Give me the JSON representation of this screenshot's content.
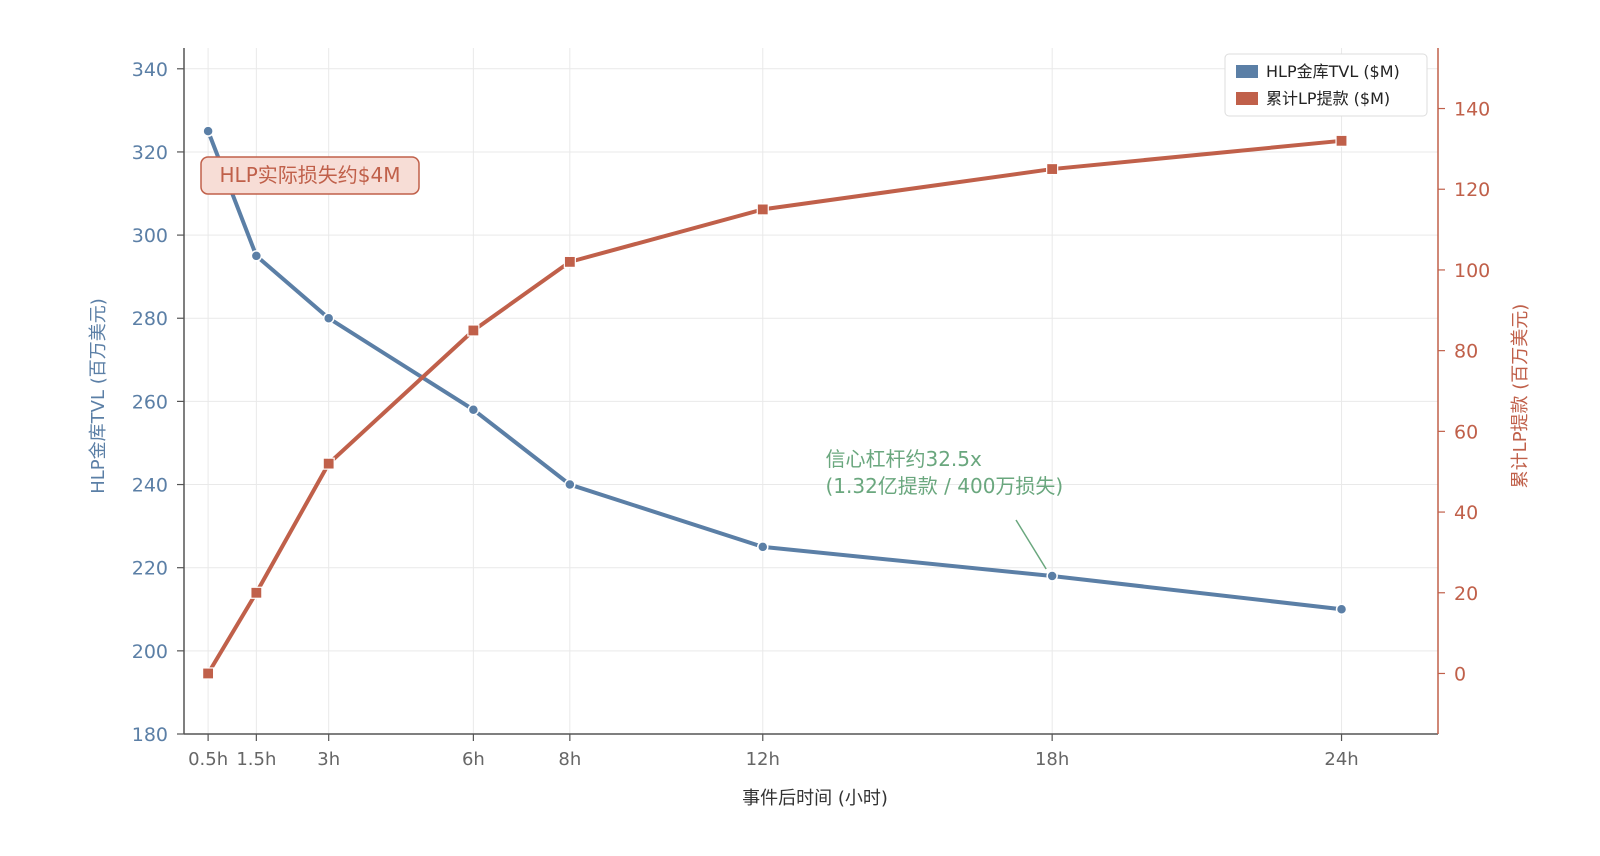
{
  "chart_data": {
    "type": "line",
    "x_labels": [
      "0.5h",
      "1.5h",
      "3h",
      "6h",
      "8h",
      "12h",
      "18h",
      "24h"
    ],
    "x": [
      0.5,
      1.5,
      3,
      6,
      8,
      12,
      18,
      24
    ],
    "xlabel": "事件后时间 (小时)",
    "xlim": [
      0,
      26
    ],
    "y_left": {
      "label": "HLP金库TVL (百万美元)",
      "lim": [
        180,
        345
      ],
      "ticks": [
        180,
        200,
        220,
        240,
        260,
        280,
        300,
        320,
        340
      ],
      "color": "#5b7fa6"
    },
    "y_right": {
      "label": "累计LP提款 (百万美元)",
      "lim": [
        -15,
        155
      ],
      "ticks": [
        0,
        20,
        40,
        60,
        80,
        100,
        120,
        140
      ],
      "color": "#c0604a"
    },
    "series": [
      {
        "name": "HLP金库TVL ($M)",
        "axis": "left",
        "marker": "circle",
        "color": "#5b7fa6",
        "values": [
          325,
          295,
          280,
          258,
          240,
          225,
          218,
          210
        ]
      },
      {
        "name": "累计LP提款 ($M)",
        "axis": "right",
        "marker": "square",
        "color": "#c0604a",
        "values": [
          0,
          20,
          52,
          85,
          102,
          115,
          125,
          132
        ]
      }
    ],
    "annotations": [
      {
        "id": "loss",
        "text": "HLP实际损失约$4M",
        "color": "#c0604a",
        "fill": "#f7ddd6",
        "style": "boxed",
        "x": 2.5,
        "y_left": 315
      },
      {
        "id": "leverage",
        "lines": [
          "信心杠杆约32.5x",
          "(1.32亿提款 / 400万损失)"
        ],
        "color": "#6aa77e",
        "arrow_to": {
          "x": 18,
          "y_left": 218
        },
        "x": 13.3,
        "y_left": 244
      }
    ],
    "legend": {
      "position": "top-right"
    },
    "grid": true
  }
}
